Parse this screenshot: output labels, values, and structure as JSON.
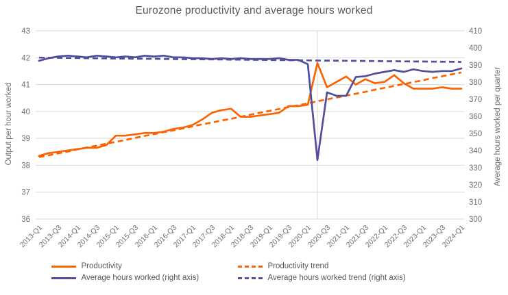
{
  "chart": {
    "title": "Eurozone productivity and average hours worked",
    "left_axis": {
      "label": "Output per hour worked",
      "ticks": [
        43,
        42,
        41,
        40,
        39,
        38,
        37,
        36
      ]
    },
    "right_axis": {
      "label": "Average hours worked per quarter",
      "ticks": [
        410,
        400,
        390,
        380,
        370,
        360,
        350,
        340,
        330,
        320,
        310,
        300
      ]
    },
    "x_tick_labels": [
      "2013-Q1",
      "2013-Q3",
      "2014-Q1",
      "2014-Q3",
      "2015-Q1",
      "2015-Q3",
      "2016-Q1",
      "2016-Q3",
      "2017-Q1",
      "2017-Q3",
      "2018-Q1",
      "2018-Q3",
      "2019-Q1",
      "2019-Q3",
      "2020-Q1",
      "2020-Q3",
      "2021-Q1",
      "2021-Q3",
      "2022-Q1",
      "2022-Q3",
      "2023-Q1",
      "2023-Q3",
      "2024-Q1"
    ],
    "legend": [
      {
        "label": "Productivity",
        "color": "#f96302",
        "style": "solid"
      },
      {
        "label": "Productivity trend",
        "color": "#f96302",
        "style": "dashed"
      },
      {
        "label": "Average hours worked (right axis)",
        "color": "#514e9e",
        "style": "solid"
      },
      {
        "label": "Average hours worked trend (right axis)",
        "color": "#514e9e",
        "style": "dashed"
      }
    ],
    "colors": {
      "orange": "#f96302",
      "purple": "#514e9e",
      "grid": "#d9d9d9",
      "axis_text": "#6e6e6e",
      "title_text": "#595959"
    }
  },
  "chart_data": {
    "type": "line",
    "title": "Eurozone productivity and average hours worked",
    "xlabel": "",
    "ylabel_left": "Output per hour worked",
    "ylabel_right": "Average hours worked per quarter",
    "left_ylim": [
      36,
      43
    ],
    "right_ylim": [
      300,
      410
    ],
    "grid": "horizontal",
    "legend_position": "bottom",
    "x": [
      "2013-Q1",
      "2013-Q2",
      "2013-Q3",
      "2013-Q4",
      "2014-Q1",
      "2014-Q2",
      "2014-Q3",
      "2014-Q4",
      "2015-Q1",
      "2015-Q2",
      "2015-Q3",
      "2015-Q4",
      "2016-Q1",
      "2016-Q2",
      "2016-Q3",
      "2016-Q4",
      "2017-Q1",
      "2017-Q2",
      "2017-Q3",
      "2017-Q4",
      "2018-Q1",
      "2018-Q2",
      "2018-Q3",
      "2018-Q4",
      "2019-Q1",
      "2019-Q2",
      "2019-Q3",
      "2019-Q4",
      "2020-Q1",
      "2020-Q2",
      "2020-Q3",
      "2020-Q4",
      "2021-Q1",
      "2021-Q2",
      "2021-Q3",
      "2021-Q4",
      "2022-Q1",
      "2022-Q2",
      "2022-Q3",
      "2022-Q4",
      "2023-Q1",
      "2023-Q2",
      "2023-Q3",
      "2023-Q4",
      "2024-Q1"
    ],
    "series": [
      {
        "name": "Productivity",
        "axis": "left",
        "style": "solid",
        "color": "#f96302",
        "values": [
          38.35,
          38.45,
          38.5,
          38.55,
          38.6,
          38.65,
          38.65,
          38.75,
          39.1,
          39.1,
          39.15,
          39.2,
          39.2,
          39.25,
          39.35,
          39.4,
          39.5,
          39.7,
          39.95,
          40.05,
          40.1,
          39.8,
          39.8,
          39.85,
          39.9,
          39.95,
          40.2,
          40.2,
          40.25,
          41.8,
          40.9,
          41.1,
          41.3,
          41.0,
          41.2,
          41.05,
          41.1,
          41.35,
          41.05,
          40.85,
          40.85,
          40.85,
          40.9,
          40.85,
          40.85
        ]
      },
      {
        "name": "Productivity trend",
        "axis": "left",
        "style": "dashed",
        "color": "#f96302",
        "values": [
          38.3,
          38.37,
          38.44,
          38.51,
          38.59,
          38.66,
          38.73,
          38.8,
          38.87,
          38.94,
          39.02,
          39.09,
          39.16,
          39.23,
          39.3,
          39.37,
          39.45,
          39.52,
          39.59,
          39.66,
          39.73,
          39.8,
          39.88,
          39.95,
          40.02,
          40.09,
          40.16,
          40.23,
          40.3,
          40.38,
          40.45,
          40.52,
          40.59,
          40.66,
          40.73,
          40.81,
          40.88,
          40.95,
          41.02,
          41.09,
          41.16,
          41.24,
          41.31,
          41.38,
          41.45
        ]
      },
      {
        "name": "Average hours worked (right axis)",
        "axis": "right",
        "style": "solid",
        "color": "#514e9e",
        "values": [
          392.5,
          394,
          395,
          395.5,
          395,
          394.5,
          395.5,
          395,
          394.5,
          395,
          394.5,
          395.5,
          395,
          395.5,
          394.5,
          394.5,
          394,
          394,
          393.5,
          394,
          393.5,
          394,
          393.5,
          393.5,
          393.5,
          394,
          393,
          393,
          390.5,
          334.5,
          374,
          372,
          372,
          383,
          383.5,
          385,
          386,
          387,
          386,
          387.5,
          386.5,
          386,
          386.5,
          386.5,
          388
        ]
      },
      {
        "name": "Average hours worked trend (right axis)",
        "axis": "right",
        "style": "dashed",
        "color": "#514e9e",
        "values": [
          394.3,
          394.24,
          394.19,
          394.13,
          394.07,
          394.02,
          393.96,
          393.9,
          393.85,
          393.79,
          393.73,
          393.68,
          393.62,
          393.56,
          393.5,
          393.45,
          393.39,
          393.33,
          393.28,
          393.22,
          393.16,
          393.11,
          393.05,
          392.99,
          392.94,
          392.88,
          392.82,
          392.77,
          392.71,
          392.65,
          392.6,
          392.54,
          392.48,
          392.43,
          392.37,
          392.31,
          392.26,
          392.2,
          392.14,
          392.09,
          392.03,
          391.97,
          391.92,
          391.86,
          391.8
        ]
      }
    ],
    "annotations": {
      "covid_vline_x": "2020-Q2"
    }
  }
}
